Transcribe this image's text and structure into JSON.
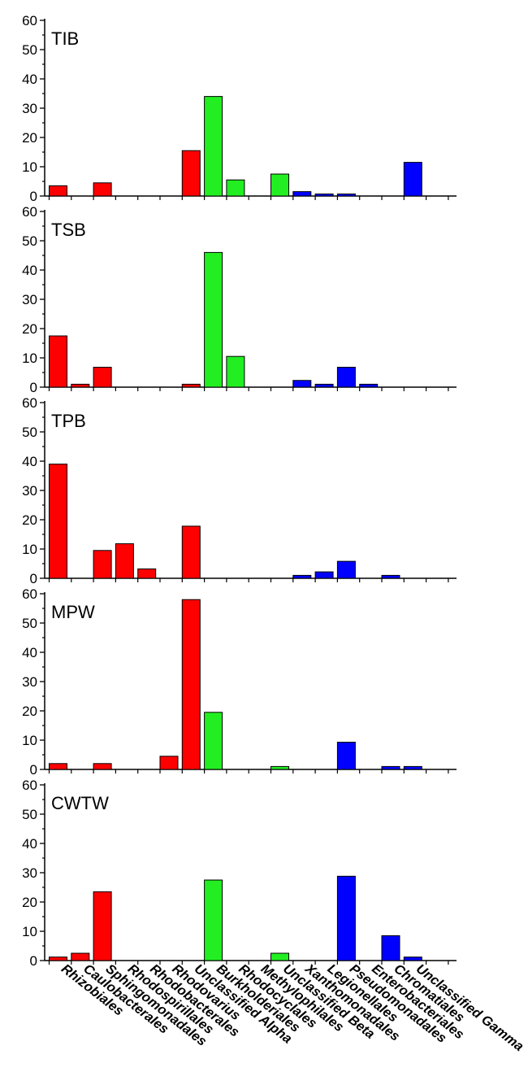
{
  "colors": {
    "alpha": "#ff0000",
    "beta": "#22ee22",
    "gamma": "#0000ff",
    "axis": "#000000"
  },
  "chart_data": {
    "type": "bar",
    "layout": "stacked-panels",
    "categories": [
      "Rhizobiales",
      "Caulobacterales",
      "Sphingomonadales",
      "Rhodospirillales",
      "Rhodobacterales",
      "Rhodovarius",
      "Unclassified Alpha",
      "Burkholderiales",
      "Rhodocyclales",
      "Methylophilales",
      "Unclassified Beta",
      "Xanthomonadales",
      "Legionellales",
      "Pseudomonadales",
      "Enterobacteriales",
      "Chromatiales",
      "Unclassified Gamma"
    ],
    "category_group": [
      "alpha",
      "alpha",
      "alpha",
      "alpha",
      "alpha",
      "alpha",
      "alpha",
      "beta",
      "beta",
      "beta",
      "beta",
      "gamma",
      "gamma",
      "gamma",
      "gamma",
      "gamma",
      "gamma"
    ],
    "ylim": [
      0,
      60
    ],
    "yticks": [
      0,
      10,
      20,
      30,
      40,
      50,
      60
    ],
    "panels": [
      {
        "label": "TIB",
        "values": [
          3.5,
          0,
          4.5,
          0,
          0,
          0,
          15.5,
          34,
          5.5,
          0,
          7.5,
          1.5,
          0.7,
          0.7,
          0,
          0,
          11.5
        ]
      },
      {
        "label": "TSB",
        "values": [
          17.5,
          1,
          6.8,
          0,
          0,
          0,
          1,
          46,
          10.5,
          0,
          0,
          2.3,
          1,
          6.8,
          1,
          0,
          0
        ]
      },
      {
        "label": "TPB",
        "values": [
          39,
          0,
          9.5,
          11.8,
          3.2,
          0,
          17.8,
          0,
          0,
          0,
          0,
          1,
          2.2,
          5.8,
          0,
          1,
          0
        ]
      },
      {
        "label": "MPW",
        "values": [
          2,
          0,
          2,
          0,
          0,
          4.5,
          58,
          19.5,
          0,
          0,
          1,
          0,
          0,
          9.3,
          0,
          1,
          1
        ]
      },
      {
        "label": "CWTW",
        "values": [
          1.2,
          2.5,
          23.5,
          0,
          0,
          0,
          0,
          27.5,
          0,
          0,
          2.5,
          0,
          0,
          28.8,
          0,
          8.5,
          1.2
        ]
      }
    ]
  }
}
